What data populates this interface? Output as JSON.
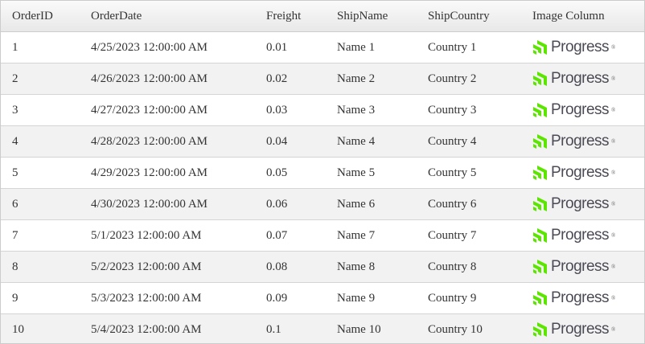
{
  "columns": [
    "OrderID",
    "OrderDate",
    "Freight",
    "ShipName",
    "ShipCountry",
    "Image Column"
  ],
  "logo": {
    "text": "Progress",
    "mark": "®",
    "color": "#5ce500"
  },
  "rows": [
    {
      "id": "1",
      "date": "4/25/2023 12:00:00 AM",
      "freight": "0.01",
      "name": "Name 1",
      "country": "Country 1"
    },
    {
      "id": "2",
      "date": "4/26/2023 12:00:00 AM",
      "freight": "0.02",
      "name": "Name 2",
      "country": "Country 2"
    },
    {
      "id": "3",
      "date": "4/27/2023 12:00:00 AM",
      "freight": "0.03",
      "name": "Name 3",
      "country": "Country 3"
    },
    {
      "id": "4",
      "date": "4/28/2023 12:00:00 AM",
      "freight": "0.04",
      "name": "Name 4",
      "country": "Country 4"
    },
    {
      "id": "5",
      "date": "4/29/2023 12:00:00 AM",
      "freight": "0.05",
      "name": "Name 5",
      "country": "Country 5"
    },
    {
      "id": "6",
      "date": "4/30/2023 12:00:00 AM",
      "freight": "0.06",
      "name": "Name 6",
      "country": "Country 6"
    },
    {
      "id": "7",
      "date": "5/1/2023 12:00:00 AM",
      "freight": "0.07",
      "name": "Name 7",
      "country": "Country 7"
    },
    {
      "id": "8",
      "date": "5/2/2023 12:00:00 AM",
      "freight": "0.08",
      "name": "Name 8",
      "country": "Country 8"
    },
    {
      "id": "9",
      "date": "5/3/2023 12:00:00 AM",
      "freight": "0.09",
      "name": "Name 9",
      "country": "Country 9"
    },
    {
      "id": "10",
      "date": "5/4/2023 12:00:00 AM",
      "freight": "0.1",
      "name": "Name 10",
      "country": "Country 10"
    }
  ]
}
